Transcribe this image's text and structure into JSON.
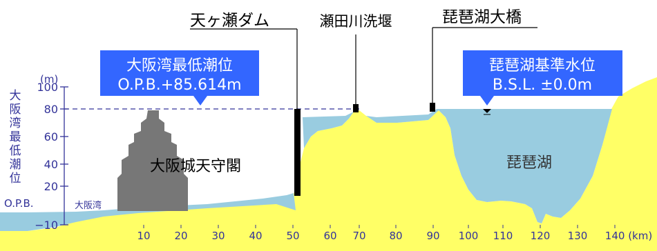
{
  "axis": {
    "y_unit": "(m)",
    "y_title_chars": [
      "大",
      "阪",
      "湾",
      "最",
      "低",
      "潮",
      "位"
    ],
    "y_zero_label": "O.P.B.",
    "y_ticks": [
      "100",
      "80",
      "60",
      "40",
      "20",
      "−10"
    ],
    "x_ticks": [
      "10",
      "20",
      "30",
      "40",
      "50",
      "60",
      "70",
      "80",
      "90",
      "100",
      "110",
      "120",
      "130",
      "140 (km)"
    ]
  },
  "labels": {
    "amagase_dam": "天ヶ瀬ダム",
    "seta_weir": "瀬田川洗堰",
    "biwako_bridge": "琵琶湖大橋",
    "osaka_castle": "大阪城天守閣",
    "biwako": "琵琶湖",
    "osaka_bay": "大阪湾"
  },
  "boxes": {
    "osaka_low_tide": {
      "line1": "大阪湾最低潮位",
      "line2": "O.P.B.+85.614m"
    },
    "biwako_standard": {
      "line1": "琵琶湖基準水位",
      "line2": "B.S.L. ±0.0m"
    }
  },
  "colors": {
    "land": "#ffff66",
    "water": "#99cce0",
    "label_box": "#3366ff",
    "axis_text": "#333399",
    "castle": "#777777",
    "marker": "#000000"
  }
}
